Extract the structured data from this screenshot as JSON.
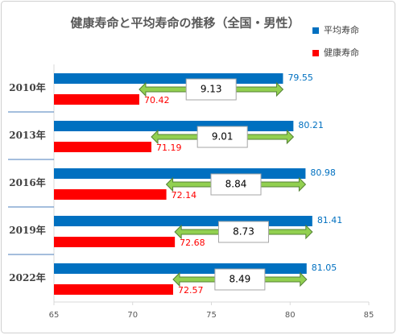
{
  "chart_data": {
    "type": "hbar",
    "title": "健康寿命と平均寿命の推移（全国・男性）",
    "categories": [
      "2010年",
      "2013年",
      "2016年",
      "2019年",
      "2022年"
    ],
    "series": [
      {
        "name": "平均寿命",
        "color": "#0070c0",
        "values": [
          79.55,
          80.21,
          80.98,
          81.41,
          81.05
        ]
      },
      {
        "name": "健康寿命",
        "color": "#ff0000",
        "values": [
          70.42,
          71.19,
          72.14,
          72.68,
          72.57
        ]
      }
    ],
    "differences": [
      9.13,
      9.01,
      8.84,
      8.73,
      8.49
    ],
    "xlim": [
      65,
      85
    ],
    "xticks": [
      65,
      70,
      75,
      80,
      85
    ],
    "legend": "top-right"
  }
}
